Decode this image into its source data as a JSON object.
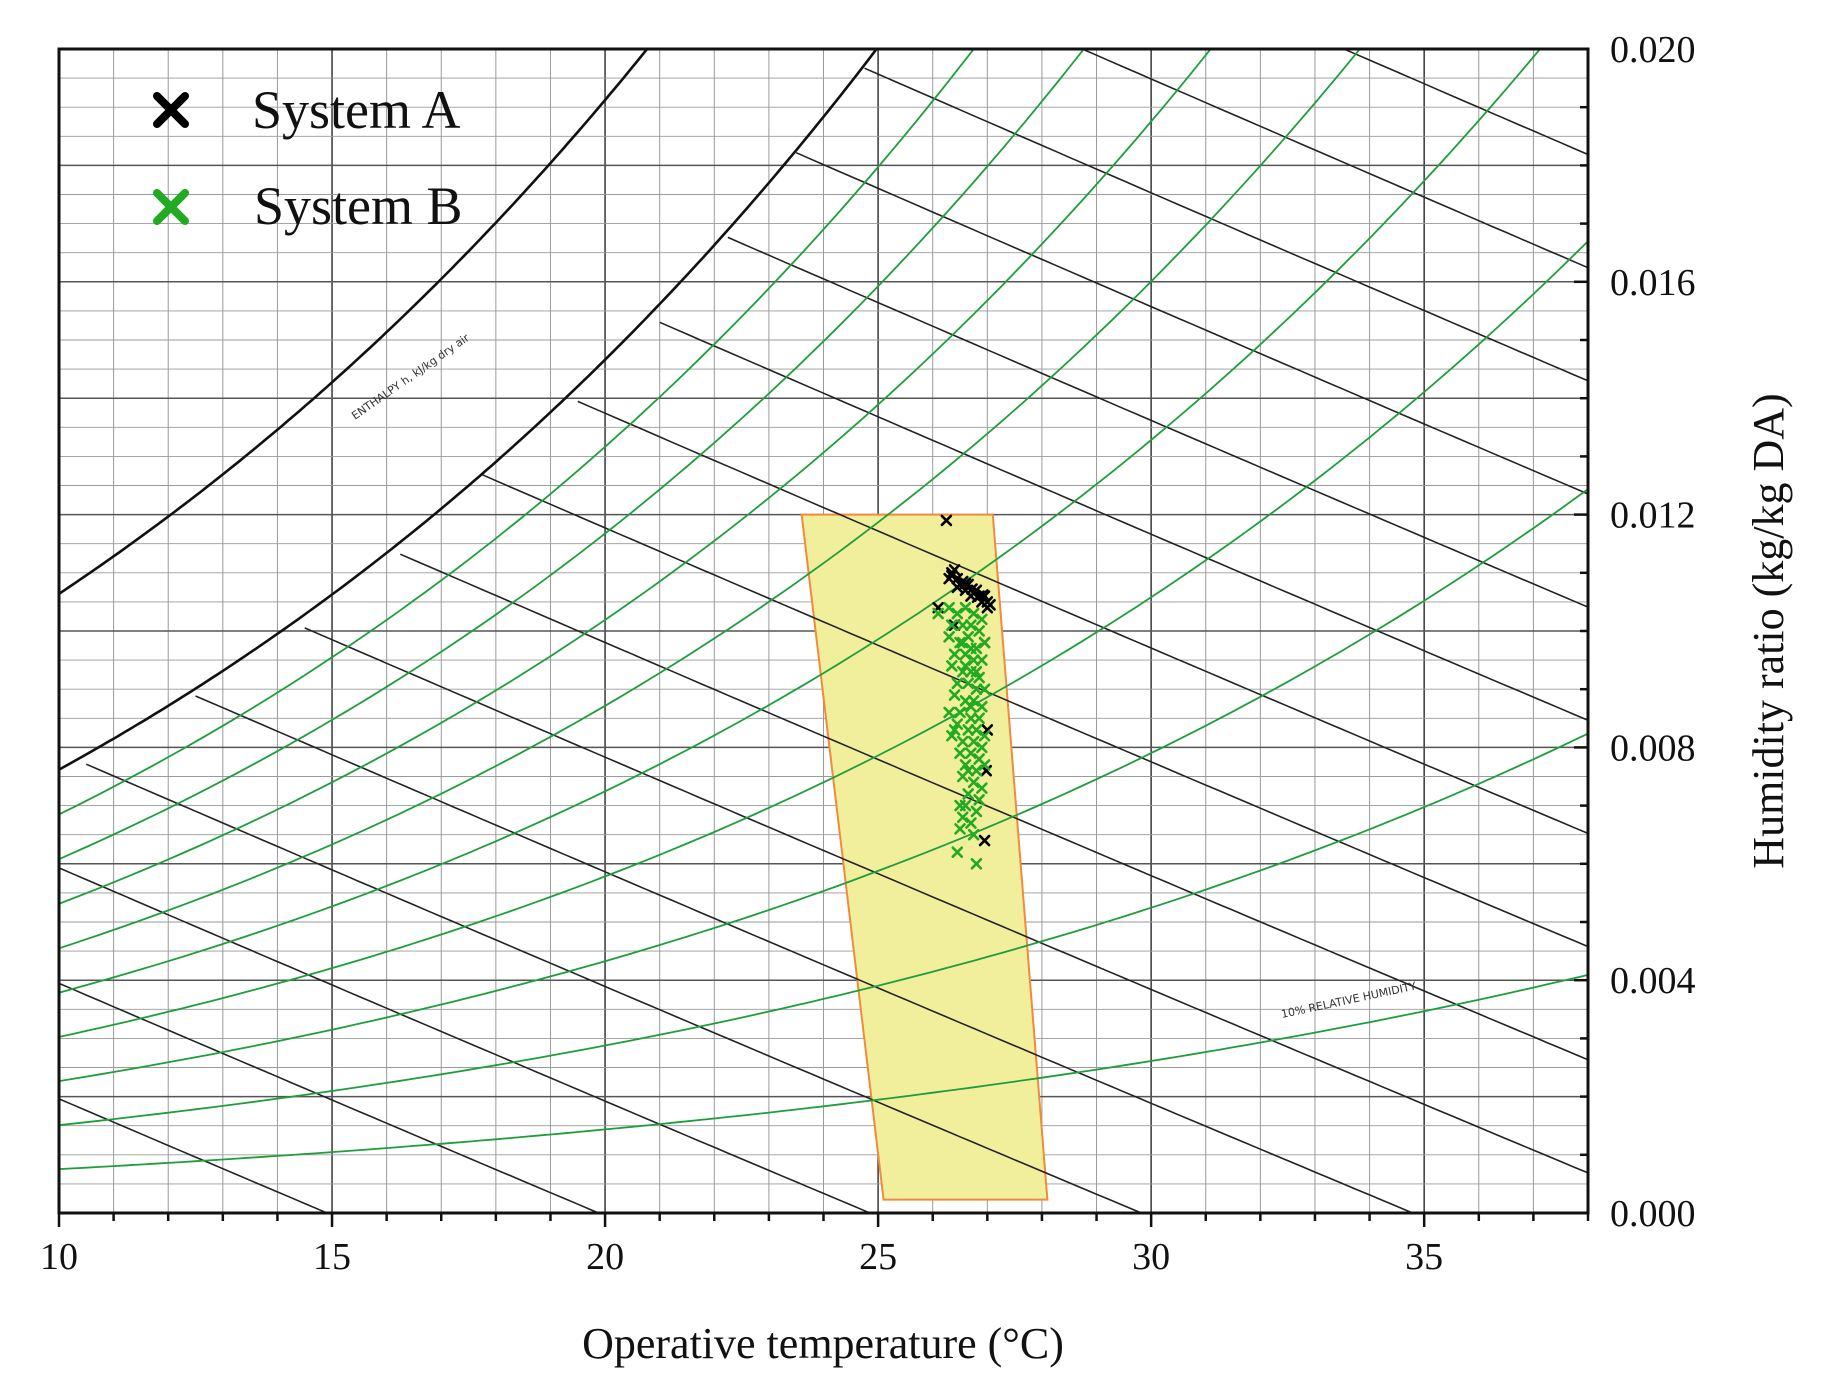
{
  "chart_data": {
    "type": "scatter",
    "subtype": "psychrometric-chart",
    "title": "",
    "xlabel": "Operative temperature (°C)",
    "ylabel": "Humidity ratio (kg/kg DA)",
    "xlim": [
      10,
      38
    ],
    "ylim": [
      0,
      0.02
    ],
    "x_ticks": [
      10,
      15,
      20,
      25,
      30,
      35
    ],
    "x_tick_labels": [
      "10",
      "15",
      "20",
      "25",
      "30",
      "35"
    ],
    "y_ticks": [
      0,
      0.004,
      0.008,
      0.012,
      0.016,
      0.02
    ],
    "y_tick_labels": [
      "0.000",
      "0.004",
      "0.008",
      "0.012",
      "0.016",
      "0.020"
    ],
    "y_axis_position": "right",
    "legend": {
      "position": "top-left",
      "entries": [
        {
          "name": "System A",
          "color": "#000000",
          "marker": "x"
        },
        {
          "name": "System B",
          "color": "#22aa22",
          "marker": "x"
        }
      ]
    },
    "comfort_zone": {
      "fill": "#f2ef9c",
      "stroke": "#f08a3c",
      "polygon": [
        [
          23.6,
          0.012
        ],
        [
          27.1,
          0.012
        ],
        [
          28.1,
          0.00023
        ],
        [
          25.1,
          0.00023
        ]
      ]
    },
    "relative_humidity_curves_percent": [
      10,
      20,
      30,
      40,
      50,
      60,
      70,
      80,
      90
    ],
    "enthalpy_lines_kj_per_kg": [
      15,
      20,
      25,
      30,
      35,
      40,
      45,
      50,
      55,
      60,
      65,
      70,
      75,
      80,
      85,
      90
    ],
    "chart_labels": [
      "ENTHALPY h, kJ/kg dry air",
      "10% RELATIVE HUMIDITY"
    ],
    "colors": {
      "relative_humidity": "#1e9e3c",
      "enthalpy": "#222222",
      "grid": "#9a9a9a",
      "system_a": "#000000",
      "system_b": "#22aa22"
    },
    "series": [
      {
        "name": "System A",
        "color": "#000000",
        "points": [
          [
            26.25,
            0.0119
          ],
          [
            26.3,
            0.0109
          ],
          [
            26.35,
            0.011
          ],
          [
            26.4,
            0.01105
          ],
          [
            26.45,
            0.0109
          ],
          [
            26.5,
            0.0108
          ],
          [
            26.55,
            0.01085
          ],
          [
            26.6,
            0.0107
          ],
          [
            26.65,
            0.0108
          ],
          [
            26.7,
            0.0106
          ],
          [
            26.75,
            0.01065
          ],
          [
            26.8,
            0.0107
          ],
          [
            26.85,
            0.0106
          ],
          [
            26.9,
            0.0105
          ],
          [
            26.95,
            0.0106
          ],
          [
            27.0,
            0.0105
          ],
          [
            27.05,
            0.01045
          ],
          [
            26.35,
            0.01095
          ],
          [
            26.45,
            0.01075
          ],
          [
            26.6,
            0.01082
          ],
          [
            26.72,
            0.01072
          ],
          [
            26.82,
            0.01058
          ],
          [
            26.92,
            0.01062
          ],
          [
            27.0,
            0.0104
          ],
          [
            26.95,
            0.0098
          ],
          [
            27.0,
            0.0083
          ],
          [
            26.98,
            0.0076
          ],
          [
            26.95,
            0.0064
          ],
          [
            26.1,
            0.0104
          ],
          [
            26.4,
            0.0101
          ]
        ]
      },
      {
        "name": "System B",
        "color": "#22aa22",
        "points": [
          [
            26.1,
            0.0103
          ],
          [
            26.3,
            0.0104
          ],
          [
            26.45,
            0.0103
          ],
          [
            26.6,
            0.0104
          ],
          [
            26.75,
            0.0103
          ],
          [
            26.9,
            0.0102
          ],
          [
            26.35,
            0.0101
          ],
          [
            26.55,
            0.0101
          ],
          [
            26.7,
            0.0101
          ],
          [
            26.85,
            0.01
          ],
          [
            26.3,
            0.0099
          ],
          [
            26.5,
            0.0098
          ],
          [
            26.65,
            0.0099
          ],
          [
            26.8,
            0.0097
          ],
          [
            26.95,
            0.0098
          ],
          [
            26.4,
            0.0096
          ],
          [
            26.6,
            0.0096
          ],
          [
            26.75,
            0.0095
          ],
          [
            26.9,
            0.0095
          ],
          [
            26.35,
            0.0094
          ],
          [
            26.55,
            0.0093
          ],
          [
            26.7,
            0.0093
          ],
          [
            26.85,
            0.0092
          ],
          [
            26.45,
            0.0091
          ],
          [
            26.65,
            0.0091
          ],
          [
            26.8,
            0.009
          ],
          [
            26.95,
            0.009
          ],
          [
            26.4,
            0.0089
          ],
          [
            26.6,
            0.0088
          ],
          [
            26.75,
            0.0088
          ],
          [
            26.9,
            0.0087
          ],
          [
            26.3,
            0.0086
          ],
          [
            26.5,
            0.0086
          ],
          [
            26.7,
            0.0085
          ],
          [
            26.85,
            0.0085
          ],
          [
            26.45,
            0.0084
          ],
          [
            26.65,
            0.0083
          ],
          [
            26.8,
            0.0083
          ],
          [
            26.35,
            0.0082
          ],
          [
            26.55,
            0.0081
          ],
          [
            26.75,
            0.0081
          ],
          [
            26.9,
            0.008
          ],
          [
            26.5,
            0.0079
          ],
          [
            26.7,
            0.0079
          ],
          [
            26.85,
            0.0078
          ],
          [
            26.6,
            0.0077
          ],
          [
            26.8,
            0.0076
          ],
          [
            26.95,
            0.0077
          ],
          [
            26.55,
            0.0075
          ],
          [
            26.75,
            0.0074
          ],
          [
            26.9,
            0.0073
          ],
          [
            26.65,
            0.0072
          ],
          [
            26.85,
            0.0071
          ],
          [
            26.6,
            0.007
          ],
          [
            26.8,
            0.0069
          ],
          [
            26.55,
            0.0068
          ],
          [
            26.7,
            0.0067
          ],
          [
            26.5,
            0.0066
          ],
          [
            26.75,
            0.0065
          ],
          [
            26.45,
            0.0062
          ],
          [
            26.8,
            0.006
          ],
          [
            26.55,
            0.0098
          ],
          [
            26.6,
            0.0094
          ],
          [
            26.7,
            0.0087
          ],
          [
            26.65,
            0.0076
          ],
          [
            26.4,
            0.0083
          ],
          [
            26.95,
            0.0082
          ],
          [
            26.5,
            0.007
          ],
          [
            26.7,
            0.0097
          ],
          [
            26.8,
            0.0093
          ]
        ]
      }
    ]
  }
}
